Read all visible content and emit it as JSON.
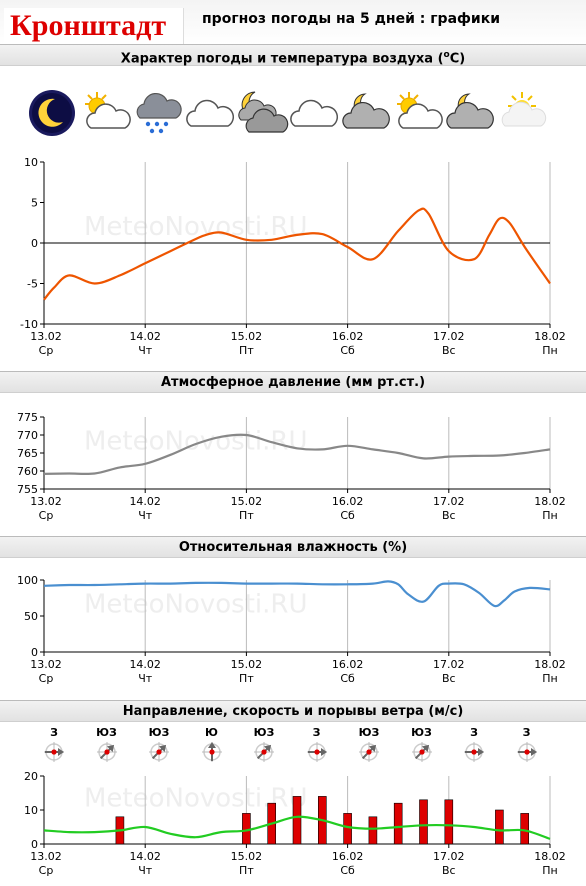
{
  "header": {
    "city": "Кронштадт",
    "subtitle": "прогноз погоды на 5 дней : графики"
  },
  "sections": {
    "temperature": {
      "title_text": "Характер погоды и температура воздуха (",
      "title_sup": "o",
      "title_end": "C)"
    },
    "pressure": {
      "title": "Атмосферное давление (мм рт.ст.)"
    },
    "humidity": {
      "title": "Относительная влажность (%)"
    },
    "wind": {
      "title": "Направление, скорость и порывы ветра (м/с)"
    }
  },
  "weather_icons": [
    "moon-clear-icon",
    "sun-cloud-icon",
    "snow-cloud-icon",
    "cloud-icon",
    "moon-heavy-cloud-icon",
    "cloud-icon",
    "moon-cloud-icon",
    "sun-cloud-icon",
    "moon-cloud-icon",
    "sun-haze-icon"
  ],
  "wind_directions": [
    "З",
    "ЮЗ",
    "ЮЗ",
    "Ю",
    "ЮЗ",
    "З",
    "ЮЗ",
    "ЮЗ",
    "З",
    "З"
  ],
  "watermark": "MeteoNovosti.RU",
  "x_axis": {
    "dates": [
      "13.02",
      "14.02",
      "15.02",
      "16.02",
      "17.02",
      "18.02"
    ],
    "days": [
      "Ср",
      "Чт",
      "Пт",
      "Сб",
      "Вс",
      "Пн"
    ]
  },
  "colors": {
    "temperature": "#ee5500",
    "pressure": "#888888",
    "humidity": "#4a8fd0",
    "wind_speed": "#22cc22",
    "gusts": "#dd0000"
  },
  "chart_data": [
    {
      "type": "line",
      "name": "temperature",
      "ylim": [
        -10,
        10
      ],
      "yticks": [
        10,
        5,
        0,
        -5,
        -10
      ],
      "x": [
        13.0,
        13.1,
        13.25,
        13.5,
        13.75,
        14.0,
        14.25,
        14.5,
        14.6,
        14.75,
        15.0,
        15.25,
        15.5,
        15.75,
        16.0,
        16.25,
        16.5,
        16.7,
        16.8,
        17.0,
        17.25,
        17.4,
        17.5,
        17.6,
        17.75,
        18.0
      ],
      "values": [
        -7,
        -5.5,
        -4,
        -5,
        -4,
        -2.5,
        -1,
        0.5,
        1,
        1.3,
        0.4,
        0.4,
        1,
        1.1,
        -0.5,
        -2,
        1.5,
        4,
        3.6,
        -1,
        -2,
        1,
        3,
        2.5,
        -0.5,
        -5
      ]
    },
    {
      "type": "line",
      "name": "pressure",
      "ylim": [
        755,
        775
      ],
      "yticks": [
        775,
        770,
        765,
        760,
        755
      ],
      "x": [
        13.0,
        13.25,
        13.5,
        13.75,
        14.0,
        14.25,
        14.5,
        14.75,
        15.0,
        15.25,
        15.5,
        15.75,
        16.0,
        16.25,
        16.5,
        16.75,
        17.0,
        17.25,
        17.5,
        17.75,
        18.0
      ],
      "values": [
        759.2,
        759.3,
        759.3,
        761,
        762,
        764.5,
        767.5,
        769.5,
        770,
        768,
        766.3,
        766,
        767,
        766,
        765,
        763.5,
        764,
        764.2,
        764.3,
        765,
        766
      ]
    },
    {
      "type": "line",
      "name": "humidity",
      "ylim": [
        0,
        100
      ],
      "yticks": [
        100,
        50,
        0
      ],
      "x": [
        13.0,
        13.25,
        13.5,
        13.75,
        14.0,
        14.25,
        14.5,
        14.75,
        15.0,
        15.25,
        15.5,
        15.75,
        16.0,
        16.25,
        16.4,
        16.5,
        16.6,
        16.75,
        16.9,
        17.0,
        17.15,
        17.3,
        17.45,
        17.55,
        17.65,
        17.8,
        18.0
      ],
      "values": [
        92,
        93,
        93,
        94,
        95,
        95,
        96,
        96,
        95,
        95,
        95,
        94,
        94,
        95,
        98,
        94,
        80,
        70,
        92,
        95,
        94,
        82,
        64,
        72,
        84,
        89,
        87
      ]
    },
    {
      "type": "bar",
      "name": "gusts",
      "ylim": [
        0,
        20
      ],
      "yticks": [
        20,
        10,
        0
      ],
      "x": [
        13.75,
        15.0,
        15.25,
        15.5,
        15.75,
        16.0,
        16.25,
        16.5,
        16.75,
        17.0,
        17.5,
        17.75
      ],
      "values": [
        8,
        9,
        12,
        14,
        14,
        9,
        8,
        12,
        13,
        13,
        10,
        9
      ]
    },
    {
      "type": "line",
      "name": "wind_speed",
      "ylim": [
        0,
        20
      ],
      "x": [
        13.0,
        13.25,
        13.5,
        13.75,
        14.0,
        14.25,
        14.5,
        14.75,
        15.0,
        15.25,
        15.5,
        15.75,
        16.0,
        16.25,
        16.5,
        16.75,
        17.0,
        17.25,
        17.5,
        17.75,
        18.0
      ],
      "values": [
        4,
        3.5,
        3.5,
        4,
        5,
        3,
        2,
        3.5,
        4,
        6,
        8,
        7,
        5,
        4.5,
        5,
        5.5,
        5.5,
        5,
        4,
        4,
        1.5
      ]
    }
  ]
}
